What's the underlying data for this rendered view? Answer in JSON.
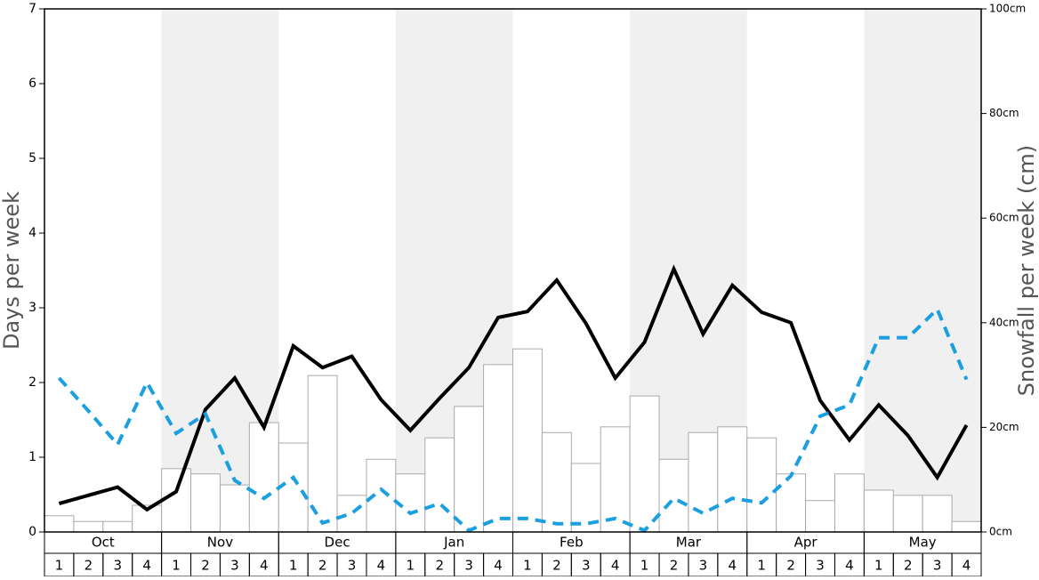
{
  "chart_data": {
    "type": "bar-line",
    "y_label": "Days per week",
    "y2_label": "Snowfall per week (cm)",
    "months": [
      "Oct",
      "Nov",
      "Dec",
      "Jan",
      "Feb",
      "Mar",
      "Apr",
      "May"
    ],
    "categories": [
      "1",
      "2",
      "3",
      "4",
      "1",
      "2",
      "3",
      "4",
      "1",
      "2",
      "3",
      "4",
      "1",
      "2",
      "3",
      "4",
      "1",
      "2",
      "3",
      "4",
      "1",
      "2",
      "3",
      "4",
      "1",
      "2",
      "3",
      "4",
      "1",
      "2",
      "3",
      "4"
    ],
    "ylim": [
      0,
      7
    ],
    "yticks": [
      0,
      1,
      2,
      3,
      4,
      5,
      6,
      7
    ],
    "y2lim": [
      0,
      100
    ],
    "y2ticks": [
      {
        "value": 0,
        "label": "0cm"
      },
      {
        "value": 20,
        "label": "20cm"
      },
      {
        "value": 40,
        "label": "40cm"
      },
      {
        "value": 60,
        "label": "60cm"
      },
      {
        "value": 80,
        "label": "80cm"
      },
      {
        "value": 100,
        "label": "100cm"
      }
    ],
    "shaded_months": [
      "Nov",
      "Jan",
      "Mar",
      "May"
    ],
    "series": [
      {
        "kind": "bar",
        "axis": "y2",
        "color": "#ffffff",
        "values": [
          3.1,
          2.0,
          2.0,
          5.1,
          12.1,
          11.1,
          9.0,
          20.9,
          17.0,
          29.9,
          7.0,
          13.9,
          11.1,
          18.0,
          24.0,
          32.0,
          35.0,
          19.0,
          13.1,
          20.1,
          26.0,
          13.9,
          19.0,
          20.1,
          18.0,
          11.1,
          6.0,
          11.1,
          8.0,
          7.0,
          7.0,
          2.0
        ]
      },
      {
        "kind": "line",
        "color": "#000000",
        "values": [
          0.38,
          0.49,
          0.6,
          0.3,
          0.54,
          1.64,
          2.06,
          1.4,
          2.49,
          2.2,
          2.35,
          1.77,
          1.36,
          1.79,
          2.2,
          2.87,
          2.95,
          3.37,
          2.79,
          2.06,
          2.54,
          3.52,
          2.65,
          3.3,
          2.94,
          2.8,
          1.76,
          1.23,
          1.7,
          1.29,
          0.73,
          1.43
        ]
      },
      {
        "kind": "dashed",
        "color": "#1a9fe0",
        "values": [
          2.06,
          1.62,
          1.17,
          2.0,
          1.32,
          1.58,
          0.69,
          0.45,
          0.73,
          0.12,
          0.25,
          0.57,
          0.25,
          0.38,
          0.02,
          0.18,
          0.18,
          0.11,
          0.11,
          0.18,
          0.02,
          0.45,
          0.25,
          0.45,
          0.39,
          0.75,
          1.55,
          1.7,
          2.6,
          2.6,
          2.98,
          2.04
        ]
      }
    ]
  }
}
